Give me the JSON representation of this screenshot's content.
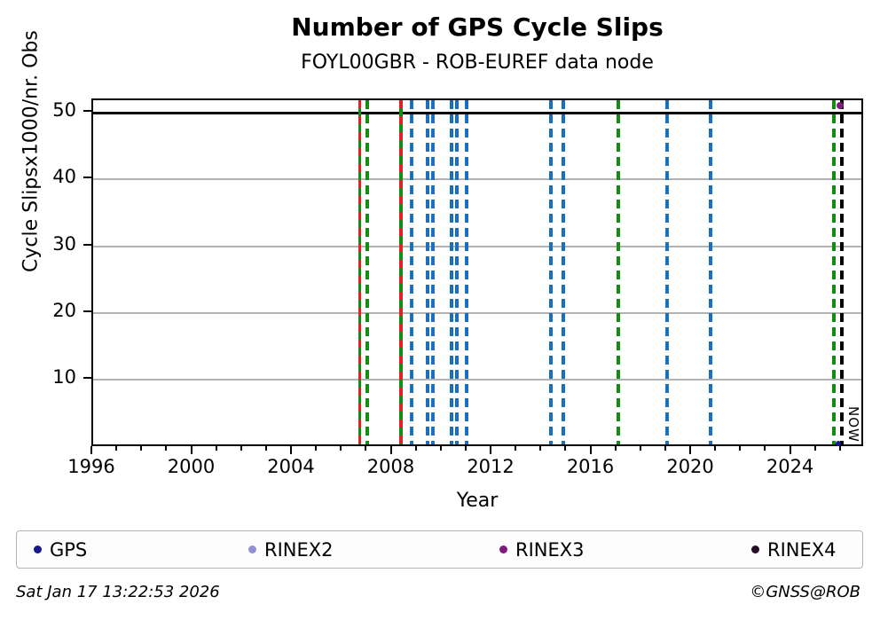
{
  "figure": {
    "title": "Number of GPS Cycle Slips",
    "subtitle": "FOYL00GBR - ROB-EUREF data node",
    "footer_left": "Sat Jan 17 13:22:53 2026",
    "footer_right": "©GNSS@ROB"
  },
  "legend": {
    "items": [
      {
        "label": "GPS",
        "color": "#18188f"
      },
      {
        "label": "RINEX2",
        "color": "#9191d6"
      },
      {
        "label": "RINEX3",
        "color": "#801a80"
      },
      {
        "label": "RINEX4",
        "color": "#270c26"
      }
    ]
  },
  "chart_data": {
    "type": "scatter",
    "title": "Number of GPS Cycle Slips",
    "subtitle": "FOYL00GBR - ROB-EUREF data node",
    "xlabel": "Year",
    "ylabel": "Cycle Slipsx1000/nr. Obs",
    "xlim": [
      1996,
      2026.93
    ],
    "ylim": [
      -0.17,
      51.86
    ],
    "x_major_ticks": [
      1996,
      2000,
      2004,
      2008,
      2012,
      2016,
      2020,
      2024
    ],
    "x_minor_step": 1,
    "y_ticks": [
      10,
      20,
      30,
      40,
      50
    ],
    "grid": "horizontal gray lines at y ticks, black frame around axes",
    "legend_position": "bottom, 4 columns",
    "colors": {
      "blue_event": "#1a6fbf",
      "green_event": "#128c12",
      "red_event": "#e02222",
      "now": "#000000",
      "grid": "#b3b3b3"
    },
    "clip_line": {
      "y": 50,
      "color": "#000000",
      "note": "solid black horizontal line spanning full x-range at y=50"
    },
    "event_lines": [
      {
        "year": 2006.68,
        "style": "green_red"
      },
      {
        "year": 2006.99,
        "style": "green_dash"
      },
      {
        "year": 2008.34,
        "style": "green_red"
      },
      {
        "year": 2008.78,
        "style": "blue_dash"
      },
      {
        "year": 2009.42,
        "style": "blue_dash"
      },
      {
        "year": 2009.6,
        "style": "blue_dash"
      },
      {
        "year": 2010.35,
        "style": "blue_dash"
      },
      {
        "year": 2010.56,
        "style": "blue_dash"
      },
      {
        "year": 2010.95,
        "style": "blue_dash"
      },
      {
        "year": 2014.35,
        "style": "blue_dash"
      },
      {
        "year": 2014.86,
        "style": "blue_dash"
      },
      {
        "year": 2017.05,
        "style": "green_dash"
      },
      {
        "year": 2019.0,
        "style": "blue_dash"
      },
      {
        "year": 2020.74,
        "style": "blue_dash"
      },
      {
        "year": 2025.7,
        "style": "green_dash"
      }
    ],
    "now_line": {
      "year": 2026.0,
      "label": "NOW",
      "style": "black_dash"
    },
    "points": [
      {
        "series": "RINEX3",
        "x": 2026.0,
        "y": 50.8,
        "color": "#801a80",
        "size": 8
      },
      {
        "series": "GPS",
        "x": 2025.95,
        "y": 0.25,
        "color": "#18188f",
        "size": 6
      }
    ]
  }
}
